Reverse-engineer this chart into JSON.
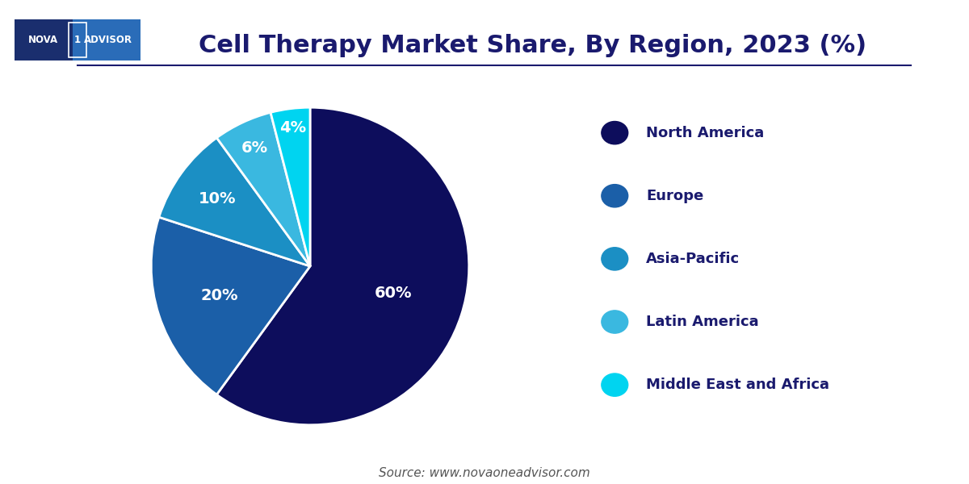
{
  "title": "Cell Therapy Market Share, By Region, 2023 (%)",
  "title_color": "#1a1a6e",
  "title_fontsize": 22,
  "background_color": "#ffffff",
  "slices": [
    60,
    20,
    10,
    6,
    4
  ],
  "labels": [
    "North America",
    "Europe",
    "Asia-Pacific",
    "Latin America",
    "Middle East and Africa"
  ],
  "pct_labels": [
    "60%",
    "20%",
    "10%",
    "6%",
    "4%"
  ],
  "colors": [
    "#0d0d5c",
    "#1b5fa8",
    "#1b8fc4",
    "#3ab8e0",
    "#00d4f0"
  ],
  "startangle": 90,
  "source_text": "Source: www.novaoneadvisor.com",
  "source_fontsize": 11,
  "source_color": "#555555",
  "legend_fontsize": 13,
  "legend_text_color": "#1a1a6e",
  "pct_fontsize": 14,
  "pct_color": "#ffffff",
  "line_color": "#1a1a6e",
  "pie_label_radii": [
    0.55,
    0.6,
    0.72,
    0.82,
    0.88
  ]
}
